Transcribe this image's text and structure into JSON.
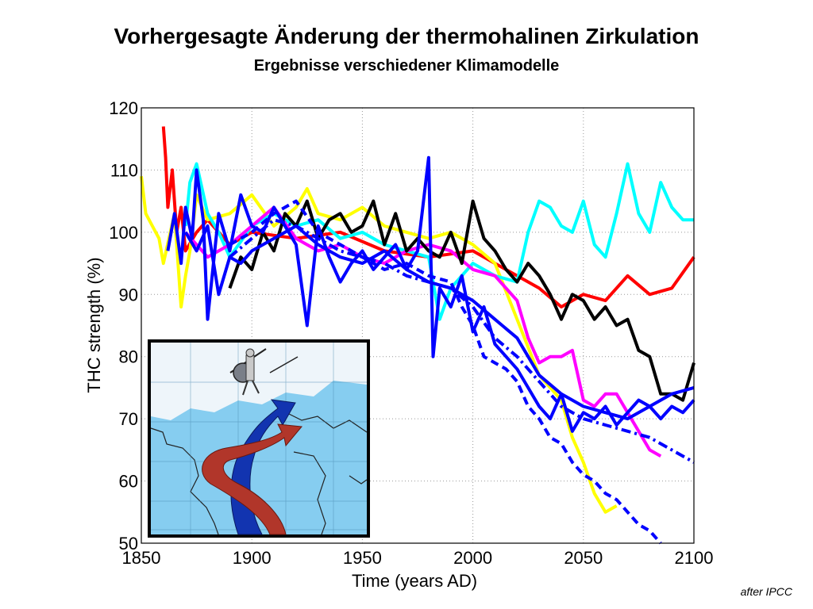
{
  "slide": {
    "title": "Vorhergesagte Änderung der thermohalinen Zirkulation",
    "subtitle": "Ergebnisse verschiedener Klimamodelle",
    "credit": "after IPCC"
  },
  "colors": {
    "red": "#ff0000",
    "yellow": "#ffff00",
    "cyan": "#00ffff",
    "magenta": "#ff00ff",
    "blue": "#0000ff",
    "black": "#000000",
    "inset_ocean": "#86cdf0",
    "inset_ice": "#eef5fa",
    "inset_current_red": "#a11b10",
    "inset_current_blue": "#1234b0"
  },
  "inset": {
    "description_icons": [
      "warrior-with-shield-icon",
      "ocean-current-arrows-icon",
      "world-map-icon"
    ]
  },
  "chart_data": {
    "type": "line",
    "xlabel": "Time (years AD)",
    "ylabel": "THC strength (%)",
    "xlim": [
      1850,
      2100
    ],
    "ylim": [
      50,
      120
    ],
    "xticks": [
      1850,
      1900,
      1950,
      2000,
      2050,
      2100
    ],
    "yticks": [
      50,
      60,
      70,
      80,
      90,
      100,
      110,
      120
    ],
    "grid": true,
    "series": [
      {
        "color": "red",
        "style": "solid",
        "x": [
          1860,
          1861,
          1862,
          1864,
          1866,
          1868,
          1870,
          1875,
          1880,
          1890,
          1900,
          1920,
          1940,
          1960,
          1980,
          2000,
          2010,
          2020,
          2030,
          2040,
          2050,
          2060,
          2070,
          2080,
          2090,
          2100
        ],
        "y": [
          117,
          112,
          104,
          110,
          100,
          104,
          97,
          100,
          102,
          98,
          100,
          99,
          100,
          97,
          96,
          97,
          95,
          93,
          91,
          88,
          90,
          89,
          93,
          90,
          91,
          96
        ]
      },
      {
        "color": "yellow",
        "style": "solid",
        "x": [
          1850,
          1852,
          1855,
          1858,
          1860,
          1865,
          1868,
          1870,
          1872,
          1875,
          1880,
          1890,
          1900,
          1910,
          1920,
          1925,
          1930,
          1940,
          1950,
          1960,
          1970,
          1980,
          1990,
          2000,
          2010,
          2020,
          2030,
          2040,
          2045,
          2050,
          2055,
          2060,
          2065
        ],
        "y": [
          109,
          103,
          101,
          99,
          95,
          103,
          88,
          93,
          97,
          106,
          102,
          103,
          106,
          101,
          104,
          107,
          103,
          102,
          104,
          101,
          100,
          99,
          100,
          98,
          95,
          86,
          77,
          73,
          67,
          63,
          58,
          55,
          56
        ]
      },
      {
        "color": "cyan",
        "style": "solid",
        "x": [
          1870,
          1872,
          1875,
          1880,
          1885,
          1890,
          1900,
          1910,
          1920,
          1930,
          1940,
          1950,
          1960,
          1970,
          1980,
          1985,
          1990,
          2000,
          2010,
          2020,
          2025,
          2030,
          2035,
          2040,
          2045,
          2050,
          2055,
          2060,
          2065,
          2070,
          2075,
          2080,
          2085,
          2090,
          2095,
          2100
        ],
        "y": [
          101,
          108,
          111,
          103,
          100,
          96,
          101,
          103,
          101,
          102,
          99,
          100,
          98,
          97,
          96,
          86,
          91,
          95,
          93,
          92,
          100,
          105,
          104,
          101,
          100,
          105,
          98,
          96,
          103,
          111,
          103,
          100,
          108,
          104,
          102,
          102
        ]
      },
      {
        "color": "magenta",
        "style": "solid",
        "x": [
          1870,
          1880,
          1890,
          1900,
          1910,
          1920,
          1930,
          1940,
          1950,
          1960,
          1970,
          1980,
          1990,
          2000,
          2010,
          2020,
          2025,
          2030,
          2035,
          2040,
          2045,
          2050,
          2055,
          2060,
          2065,
          2070,
          2075,
          2080,
          2085
        ],
        "y": [
          100,
          96,
          98,
          101,
          104,
          99,
          97,
          98,
          96,
          95,
          97,
          98,
          97,
          94,
          93,
          89,
          83,
          79,
          80,
          80,
          81,
          73,
          72,
          74,
          74,
          71,
          68,
          65,
          64
        ]
      },
      {
        "color": "black",
        "style": "solid",
        "x": [
          1890,
          1895,
          1900,
          1905,
          1910,
          1915,
          1920,
          1925,
          1930,
          1935,
          1940,
          1945,
          1950,
          1955,
          1960,
          1965,
          1970,
          1975,
          1980,
          1985,
          1990,
          1995,
          2000,
          2005,
          2010,
          2015,
          2020,
          2025,
          2030,
          2035,
          2040,
          2045,
          2050,
          2055,
          2060,
          2065,
          2070,
          2075,
          2080,
          2085,
          2090,
          2095,
          2100
        ],
        "y": [
          91,
          96,
          94,
          100,
          97,
          103,
          101,
          105,
          99,
          102,
          103,
          100,
          101,
          105,
          98,
          103,
          97,
          99,
          97,
          96,
          100,
          95,
          105,
          99,
          97,
          94,
          92,
          95,
          93,
          90,
          86,
          90,
          89,
          86,
          88,
          85,
          86,
          81,
          80,
          74,
          74,
          73,
          79
        ]
      },
      {
        "color": "blue",
        "style": "solid",
        "x": [
          1862,
          1865,
          1868,
          1870,
          1873,
          1875,
          1878,
          1880,
          1885,
          1890,
          1895,
          1900,
          1905,
          1910,
          1920,
          1925,
          1930,
          1935,
          1940,
          1945,
          1950,
          1955,
          1960,
          1965,
          1970,
          1975,
          1980,
          1982,
          1985,
          1990,
          1995,
          2000,
          2005,
          2010,
          2015,
          2020,
          2025,
          2030,
          2035,
          2040,
          2045,
          2050,
          2055,
          2060,
          2065,
          2070,
          2075,
          2080,
          2085,
          2090,
          2095,
          2100
        ],
        "y": [
          97,
          103,
          95,
          104,
          99,
          110,
          102,
          86,
          103,
          97,
          106,
          101,
          100,
          104,
          98,
          85,
          101,
          96,
          92,
          95,
          97,
          94,
          96,
          98,
          94,
          97,
          112,
          80,
          91,
          88,
          93,
          84,
          88,
          82,
          80,
          78,
          75,
          72,
          70,
          74,
          68,
          71,
          70,
          72,
          69,
          71,
          73,
          72,
          70,
          72,
          71,
          73
        ]
      },
      {
        "color": "blue",
        "style": "solid",
        "x": [
          1870,
          1875,
          1880,
          1885,
          1890,
          1895,
          1900,
          1910,
          1920,
          1930,
          1940,
          1950,
          1960,
          1970,
          1980,
          1990,
          2000,
          2010,
          2020,
          2030,
          2040,
          2050,
          2060,
          2070,
          2080,
          2090,
          2100
        ],
        "y": [
          100,
          97,
          101,
          90,
          96,
          95,
          97,
          99,
          101,
          98,
          96,
          95,
          97,
          94,
          92,
          91,
          89,
          86,
          83,
          77,
          74,
          72,
          71,
          70,
          72,
          74,
          75
        ]
      },
      {
        "color": "blue",
        "style": "dashed",
        "x": [
          1890,
          1900,
          1910,
          1920,
          1930,
          1940,
          1950,
          1960,
          1970,
          1980,
          1990,
          1995,
          2000,
          2005,
          2010,
          2015,
          2020,
          2025,
          2030,
          2035,
          2040,
          2045,
          2050,
          2055,
          2060,
          2065,
          2070,
          2075,
          2080,
          2085
        ],
        "y": [
          98,
          100,
          103,
          105,
          100,
          98,
          96,
          94,
          95,
          93,
          92,
          88,
          85,
          80,
          79,
          78,
          76,
          72,
          70,
          67,
          66,
          63,
          61,
          60,
          58,
          57,
          55,
          53,
          52,
          50
        ]
      },
      {
        "color": "blue",
        "style": "dashdot",
        "x": [
          1890,
          1900,
          1910,
          1920,
          1930,
          1940,
          1950,
          1960,
          1970,
          1980,
          1990,
          2000,
          2010,
          2020,
          2030,
          2040,
          2050,
          2060,
          2070,
          2080,
          2090,
          2100
        ],
        "y": [
          96,
          99,
          102,
          101,
          99,
          97,
          96,
          95,
          93,
          92,
          91,
          88,
          83,
          80,
          76,
          72,
          70,
          69,
          68,
          67,
          65,
          63
        ]
      }
    ]
  }
}
